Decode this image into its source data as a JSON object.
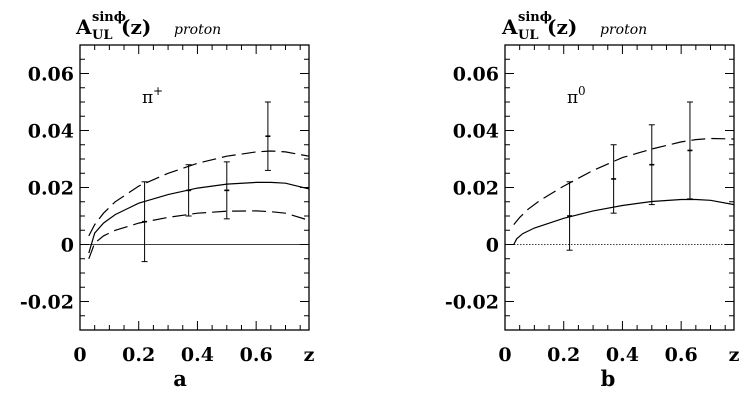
{
  "chart_data": [
    {
      "type": "line",
      "panel_label": "a",
      "ylabel": {
        "main": "A",
        "sub": "UL",
        "sup": "sinϕ",
        "suffix": "(z)",
        "note": "proton"
      },
      "xlabel": "z",
      "annotation": {
        "base": "π",
        "sup": "+"
      },
      "xlim": [
        0,
        0.78
      ],
      "ylim": [
        -0.03,
        0.07
      ],
      "xticks": [
        {
          "value": 0,
          "label": "0"
        },
        {
          "value": 0.2,
          "label": "0.2"
        },
        {
          "value": 0.4,
          "label": "0.4"
        },
        {
          "value": 0.6,
          "label": "0.6"
        }
      ],
      "yticks": [
        {
          "value": -0.02,
          "label": "-0.02"
        },
        {
          "value": 0,
          "label": "0"
        },
        {
          "value": 0.02,
          "label": "0.02"
        },
        {
          "value": 0.04,
          "label": "0.04"
        },
        {
          "value": 0.06,
          "label": "0.06"
        }
      ],
      "zero_line": true,
      "series": [
        {
          "style": "dashed",
          "x": [
            0.03,
            0.05,
            0.08,
            0.12,
            0.2,
            0.3,
            0.4,
            0.5,
            0.6,
            0.65,
            0.7,
            0.78
          ],
          "y": [
            0.003,
            0.007,
            0.011,
            0.015,
            0.0205,
            0.025,
            0.0285,
            0.031,
            0.0325,
            0.0328,
            0.0325,
            0.031
          ]
        },
        {
          "style": "solid",
          "x": [
            0.03,
            0.05,
            0.08,
            0.12,
            0.2,
            0.3,
            0.4,
            0.5,
            0.6,
            0.65,
            0.7,
            0.78
          ],
          "y": [
            -0.003,
            0.004,
            0.0075,
            0.0105,
            0.0145,
            0.0175,
            0.0198,
            0.0212,
            0.0218,
            0.0218,
            0.0215,
            0.0195
          ]
        },
        {
          "style": "dashed",
          "x": [
            0.03,
            0.05,
            0.08,
            0.12,
            0.2,
            0.3,
            0.4,
            0.5,
            0.6,
            0.65,
            0.7,
            0.78
          ],
          "y": [
            -0.005,
            0.0005,
            0.003,
            0.005,
            0.0075,
            0.0095,
            0.011,
            0.0117,
            0.0118,
            0.0115,
            0.011,
            0.0085
          ]
        }
      ],
      "points": [
        {
          "x": 0.22,
          "y": 0.008,
          "err": 0.014
        },
        {
          "x": 0.37,
          "y": 0.019,
          "err": 0.009
        },
        {
          "x": 0.5,
          "y": 0.019,
          "err": 0.01
        },
        {
          "x": 0.64,
          "y": 0.038,
          "err": 0.012
        }
      ]
    },
    {
      "type": "line",
      "panel_label": "b",
      "ylabel": {
        "main": "A",
        "sub": "UL",
        "sup": "sinϕ",
        "suffix": "(z)",
        "note": "proton"
      },
      "xlabel": "z",
      "annotation": {
        "base": "π",
        "sup": "0"
      },
      "xlim": [
        0,
        0.78
      ],
      "ylim": [
        -0.03,
        0.07
      ],
      "xticks": [
        {
          "value": 0,
          "label": "0"
        },
        {
          "value": 0.2,
          "label": "0.2"
        },
        {
          "value": 0.4,
          "label": "0.4"
        },
        {
          "value": 0.6,
          "label": "0.6"
        }
      ],
      "yticks": [
        {
          "value": -0.02,
          "label": "-0.02"
        },
        {
          "value": 0,
          "label": "0"
        },
        {
          "value": 0.02,
          "label": "0.02"
        },
        {
          "value": 0.04,
          "label": "0.04"
        },
        {
          "value": 0.06,
          "label": "0.06"
        }
      ],
      "zero_line": true,
      "series": [
        {
          "style": "dashed",
          "x": [
            0.03,
            0.05,
            0.08,
            0.12,
            0.2,
            0.3,
            0.4,
            0.5,
            0.6,
            0.65,
            0.7,
            0.78
          ],
          "y": [
            0.007,
            0.0095,
            0.0125,
            0.0155,
            0.0205,
            0.026,
            0.0305,
            0.0335,
            0.036,
            0.0368,
            0.0372,
            0.037
          ]
        },
        {
          "style": "solid",
          "x": [
            0.03,
            0.04,
            0.06,
            0.1,
            0.2,
            0.3,
            0.4,
            0.5,
            0.6,
            0.65,
            0.7,
            0.78
          ],
          "y": [
            0.0,
            0.002,
            0.0038,
            0.0058,
            0.0092,
            0.0118,
            0.0137,
            0.0151,
            0.0158,
            0.0158,
            0.0155,
            0.014
          ]
        }
      ],
      "points": [
        {
          "x": 0.22,
          "y": 0.01,
          "err": 0.012
        },
        {
          "x": 0.37,
          "y": 0.023,
          "err": 0.012
        },
        {
          "x": 0.5,
          "y": 0.028,
          "err": 0.014
        },
        {
          "x": 0.63,
          "y": 0.033,
          "err": 0.017
        }
      ]
    }
  ]
}
